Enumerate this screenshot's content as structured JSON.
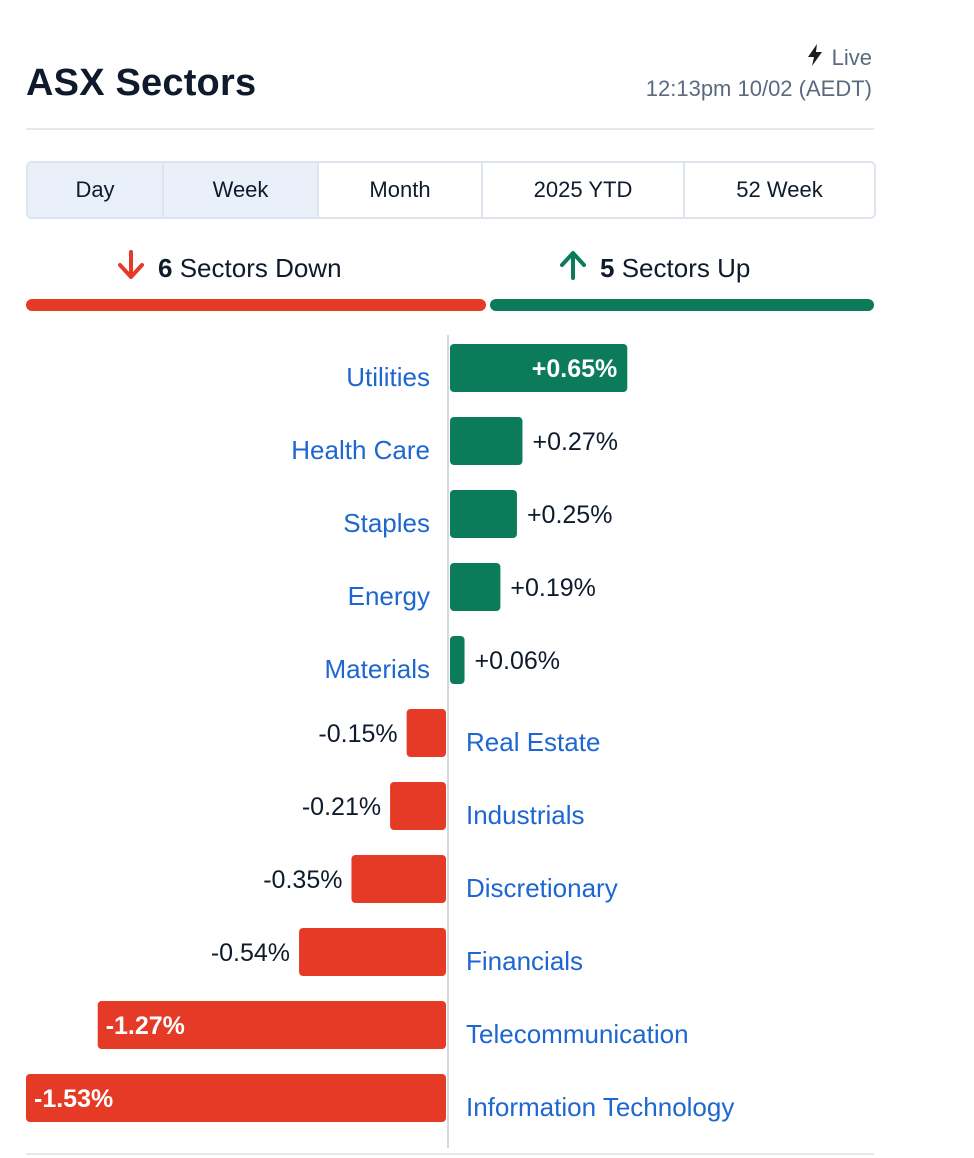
{
  "header": {
    "title": "ASX Sectors",
    "live_label": "Live",
    "timestamp": "12:13pm 10/02 (AEDT)"
  },
  "tabs": [
    {
      "label": "Day",
      "active": true
    },
    {
      "label": "Week",
      "active": true
    },
    {
      "label": "Month",
      "active": false
    },
    {
      "label": "2025 YTD",
      "active": false
    },
    {
      "label": "52 Week",
      "active": false
    }
  ],
  "summary": {
    "down_count": "6",
    "down_label": "Sectors Down",
    "up_count": "5",
    "up_label": "Sectors Up"
  },
  "icons": {
    "live": "lightning-bolt-icon",
    "down": "arrow-down-icon",
    "up": "arrow-up-icon"
  },
  "colors": {
    "positive": "#0b7b5a",
    "negative": "#e53a26",
    "label": "#1e66d0",
    "active_tab": "#e9f0f9"
  },
  "chart_data": {
    "type": "bar",
    "orientation": "horizontal",
    "categories": [
      "Utilities",
      "Health Care",
      "Staples",
      "Energy",
      "Materials",
      "Real Estate",
      "Industrials",
      "Discretionary",
      "Financials",
      "Telecommunication",
      "Information Technology"
    ],
    "values": [
      0.65,
      0.27,
      0.25,
      0.19,
      0.06,
      -0.15,
      -0.21,
      -0.35,
      -0.54,
      -1.27,
      -1.53
    ],
    "value_labels": [
      "+0.65%",
      "+0.27%",
      "+0.25%",
      "+0.19%",
      "+0.06%",
      "-0.15%",
      "-0.21%",
      "-0.35%",
      "-0.54%",
      "-1.27%",
      "-1.53%"
    ],
    "unit": "%",
    "xlim": [
      -1.53,
      0.65
    ],
    "grid": false,
    "legend": "none"
  }
}
